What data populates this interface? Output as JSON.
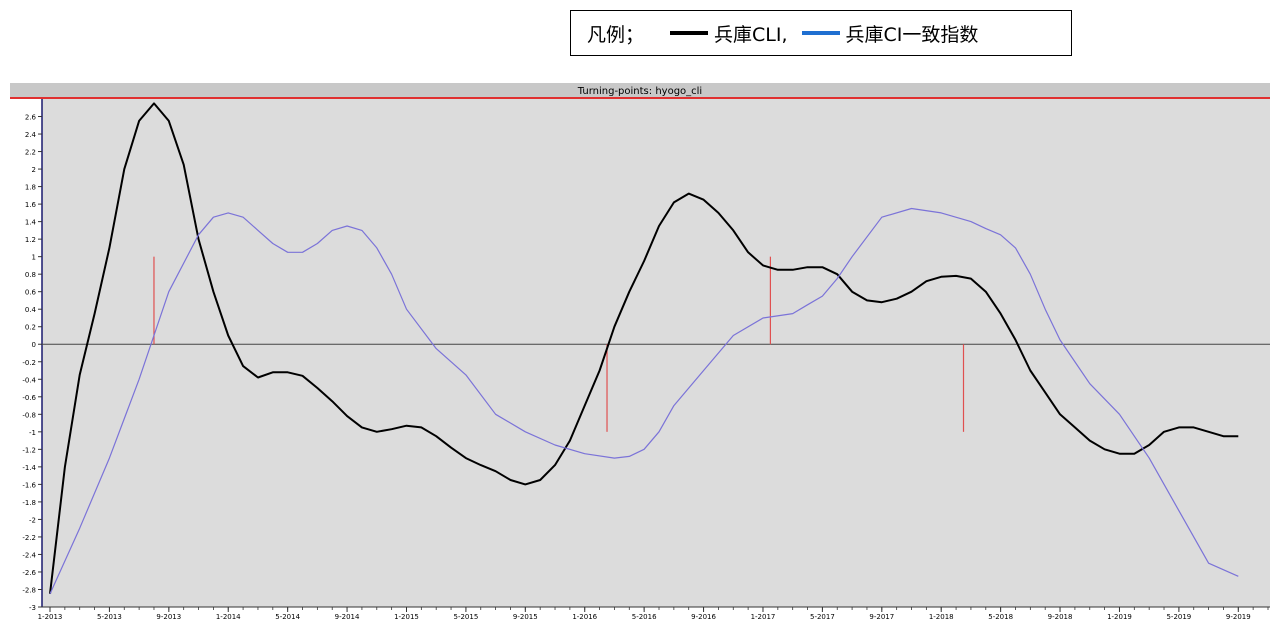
{
  "legend": {
    "title": "凡例；",
    "entries": [
      {
        "label": "兵庫CLI,",
        "color": "#000000"
      },
      {
        "label": "兵庫CI一致指数",
        "color": "#1f6fd1"
      }
    ]
  },
  "chart_data": {
    "type": "line",
    "title": "Turning-points: hyogo_cli",
    "xlabel": "",
    "ylabel": "",
    "ylim": [
      -3,
      2.8
    ],
    "yticks": [
      2.6,
      2.4,
      2.2,
      2,
      1.8,
      1.6,
      1.4,
      1.2,
      1,
      0.8,
      0.6,
      0.4,
      0.2,
      0,
      -0.2,
      -0.4,
      -0.6,
      -0.8,
      -1,
      -1.2,
      -1.4,
      -1.6,
      -1.8,
      -2,
      -2.2,
      -2.4,
      -2.6,
      -2.8,
      -3
    ],
    "ytick_labels": [
      "2.6",
      "2.4",
      "2.2",
      "2",
      "1.8",
      "1.6",
      "1.4",
      "1.2",
      "1",
      "0.8",
      "0.6",
      "0.4",
      "0.2",
      "0",
      "-0.2",
      "-0.4",
      "-0.6",
      "-0.8",
      "-1",
      "-1.2",
      "-1.4",
      "-1.6",
      "-1.8",
      "-2",
      "-2.2",
      "-2.4",
      "-2.6",
      "-2.8",
      "-3"
    ],
    "xlim": [
      0,
      82
    ],
    "xticks": [
      {
        "x": 0,
        "label": "1-2013"
      },
      {
        "x": 4,
        "label": "5-2013"
      },
      {
        "x": 8,
        "label": "9-2013"
      },
      {
        "x": 12,
        "label": "1-2014"
      },
      {
        "x": 16,
        "label": "5-2014"
      },
      {
        "x": 20,
        "label": "9-2014"
      },
      {
        "x": 24,
        "label": "1-2015"
      },
      {
        "x": 28,
        "label": "5-2015"
      },
      {
        "x": 32,
        "label": "9-2015"
      },
      {
        "x": 36,
        "label": "1-2016"
      },
      {
        "x": 40,
        "label": "5-2016"
      },
      {
        "x": 44,
        "label": "9-2016"
      },
      {
        "x": 48,
        "label": "1-2017"
      },
      {
        "x": 52,
        "label": "5-2017"
      },
      {
        "x": 56,
        "label": "9-2017"
      },
      {
        "x": 60,
        "label": "1-2018"
      },
      {
        "x": 64,
        "label": "5-2018"
      },
      {
        "x": 68,
        "label": "9-2018"
      },
      {
        "x": 72,
        "label": "1-2019"
      },
      {
        "x": 76,
        "label": "5-2019"
      },
      {
        "x": 80,
        "label": "9-2019"
      }
    ],
    "grid": false,
    "series": [
      {
        "color": "#000000",
        "x": [
          0,
          1,
          2,
          3,
          4,
          5,
          6,
          7,
          8,
          9,
          10,
          11,
          12,
          13,
          14,
          15,
          16,
          17,
          18,
          19,
          20,
          21,
          22,
          23,
          24,
          25,
          26,
          27,
          28,
          29,
          30,
          31,
          32,
          33,
          34,
          35,
          36,
          37,
          38,
          39,
          40,
          41,
          42,
          43,
          44,
          45,
          46,
          47,
          48,
          49,
          50,
          51,
          52,
          53,
          54,
          55,
          56,
          57,
          58,
          59,
          60,
          61,
          62,
          63,
          64,
          65,
          66,
          67,
          68,
          69,
          70,
          71,
          72,
          73,
          74,
          75,
          76,
          77,
          78,
          79,
          80
        ],
        "y": [
          -2.85,
          -1.4,
          -0.35,
          0.35,
          1.1,
          2.0,
          2.55,
          2.75,
          2.55,
          2.05,
          1.2,
          0.6,
          0.1,
          -0.25,
          -0.38,
          -0.32,
          -0.32,
          -0.36,
          -0.5,
          -0.65,
          -0.82,
          -0.95,
          -1.0,
          -0.97,
          -0.93,
          -0.95,
          -1.05,
          -1.18,
          -1.3,
          -1.38,
          -1.45,
          -1.55,
          -1.6,
          -1.55,
          -1.38,
          -1.1,
          -0.7,
          -0.3,
          0.2,
          0.6,
          0.95,
          1.35,
          1.62,
          1.72,
          1.65,
          1.5,
          1.3,
          1.05,
          0.9,
          0.85,
          0.85,
          0.88,
          0.88,
          0.8,
          0.6,
          0.5,
          0.48,
          0.52,
          0.6,
          0.72,
          0.77,
          0.78,
          0.75,
          0.6,
          0.35,
          0.05,
          -0.3,
          -0.55,
          -0.8,
          -0.95,
          -1.1,
          -1.2,
          -1.25,
          -1.25,
          -1.15,
          -1.0,
          -0.95,
          -0.95,
          -1.0,
          -1.05,
          -1.05
        ]
      },
      {
        "color": "#7b73d8",
        "x": [
          0,
          2,
          4,
          6,
          8,
          10,
          11,
          12,
          13,
          14,
          15,
          16,
          17,
          18,
          19,
          20,
          21,
          22,
          23,
          24,
          26,
          28,
          30,
          32,
          34,
          36,
          38,
          39,
          40,
          41,
          42,
          44,
          46,
          48,
          50,
          51,
          52,
          53,
          54,
          56,
          58,
          60,
          62,
          63,
          64,
          65,
          66,
          67,
          68,
          70,
          72,
          74,
          76,
          78,
          80
        ],
        "y": [
          -2.85,
          -2.1,
          -1.3,
          -0.4,
          0.6,
          1.25,
          1.45,
          1.5,
          1.45,
          1.3,
          1.15,
          1.05,
          1.05,
          1.15,
          1.3,
          1.35,
          1.3,
          1.1,
          0.8,
          0.4,
          -0.05,
          -0.35,
          -0.8,
          -1.0,
          -1.15,
          -1.25,
          -1.3,
          -1.28,
          -1.2,
          -1.0,
          -0.7,
          -0.3,
          0.1,
          0.3,
          0.35,
          0.45,
          0.55,
          0.75,
          1.0,
          1.45,
          1.55,
          1.5,
          1.4,
          1.32,
          1.25,
          1.1,
          0.8,
          0.4,
          0.05,
          -0.45,
          -0.8,
          -1.3,
          -1.9,
          -2.5,
          -2.65
        ]
      }
    ],
    "turning_points": [
      {
        "x": 7,
        "y_from": 0,
        "y_to": 1.0
      },
      {
        "x": 37.5,
        "y_from": 0,
        "y_to": -1.0
      },
      {
        "x": 48.5,
        "y_from": 0,
        "y_to": 1.0
      },
      {
        "x": 61.5,
        "y_from": 0,
        "y_to": -1.0
      }
    ]
  }
}
